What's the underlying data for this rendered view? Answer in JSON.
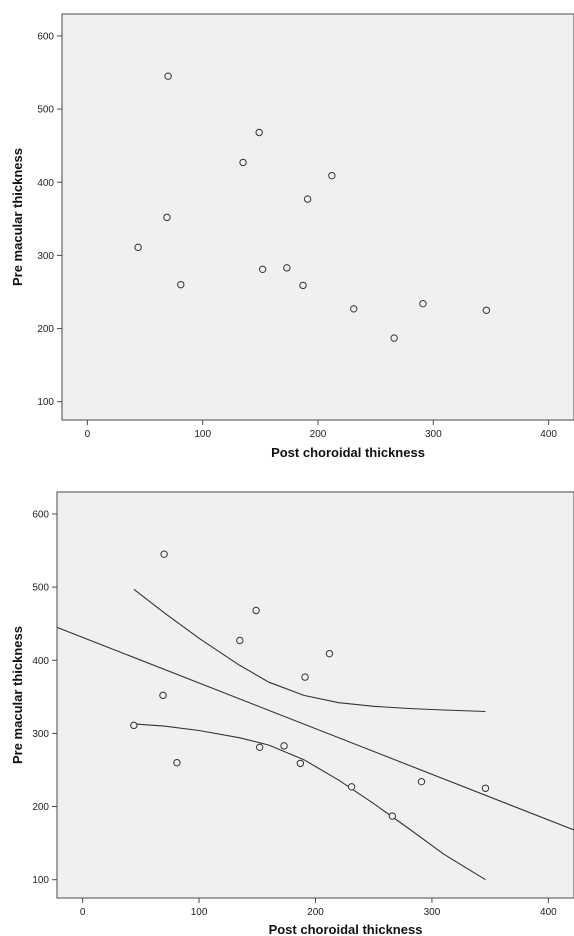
{
  "chart_data": [
    {
      "type": "scatter",
      "xlabel": "Post choroidal thickness",
      "ylabel": "Pre macular thickness",
      "xlim": [
        -22,
        422
      ],
      "ylim": [
        75,
        630
      ],
      "xticks": [
        0,
        100,
        200,
        300,
        400
      ],
      "yticks": [
        100,
        200,
        300,
        400,
        500,
        600
      ],
      "grid": false,
      "points": [
        {
          "x": 70,
          "y": 545
        },
        {
          "x": 149,
          "y": 468
        },
        {
          "x": 135,
          "y": 427
        },
        {
          "x": 212,
          "y": 409
        },
        {
          "x": 191,
          "y": 377
        },
        {
          "x": 69,
          "y": 352
        },
        {
          "x": 44,
          "y": 311
        },
        {
          "x": 152,
          "y": 281
        },
        {
          "x": 173,
          "y": 283
        },
        {
          "x": 81,
          "y": 260
        },
        {
          "x": 187,
          "y": 259
        },
        {
          "x": 231,
          "y": 227
        },
        {
          "x": 291,
          "y": 234
        },
        {
          "x": 346,
          "y": 225
        },
        {
          "x": 266,
          "y": 187
        }
      ]
    },
    {
      "type": "scatter",
      "xlabel": "Post choroidal thickness",
      "ylabel": "Pre macular thickness",
      "xlim": [
        -22,
        422
      ],
      "ylim": [
        75,
        630
      ],
      "xticks": [
        0,
        100,
        200,
        300,
        400
      ],
      "yticks": [
        100,
        200,
        300,
        400,
        500,
        600
      ],
      "grid": false,
      "points": [
        {
          "x": 70,
          "y": 545
        },
        {
          "x": 149,
          "y": 468
        },
        {
          "x": 135,
          "y": 427
        },
        {
          "x": 212,
          "y": 409
        },
        {
          "x": 191,
          "y": 377
        },
        {
          "x": 69,
          "y": 352
        },
        {
          "x": 44,
          "y": 311
        },
        {
          "x": 152,
          "y": 281
        },
        {
          "x": 173,
          "y": 283
        },
        {
          "x": 81,
          "y": 260
        },
        {
          "x": 187,
          "y": 259
        },
        {
          "x": 231,
          "y": 227
        },
        {
          "x": 291,
          "y": 234
        },
        {
          "x": 346,
          "y": 225
        },
        {
          "x": 266,
          "y": 187
        }
      ],
      "fit_line": {
        "x": [
          -22,
          422
        ],
        "y": [
          445,
          168
        ]
      },
      "confidence_band": {
        "upper": {
          "x": [
            44,
            70,
            100,
            135,
            160,
            190,
            220,
            250,
            280,
            310,
            346
          ],
          "y": [
            497,
            465,
            430,
            393,
            370,
            352,
            342,
            337,
            334,
            332,
            330
          ]
        },
        "lower": {
          "x": [
            44,
            70,
            100,
            135,
            160,
            190,
            220,
            250,
            280,
            310,
            346
          ],
          "y": [
            313,
            310,
            304,
            294,
            284,
            264,
            236,
            204,
            170,
            135,
            100
          ]
        }
      }
    }
  ]
}
